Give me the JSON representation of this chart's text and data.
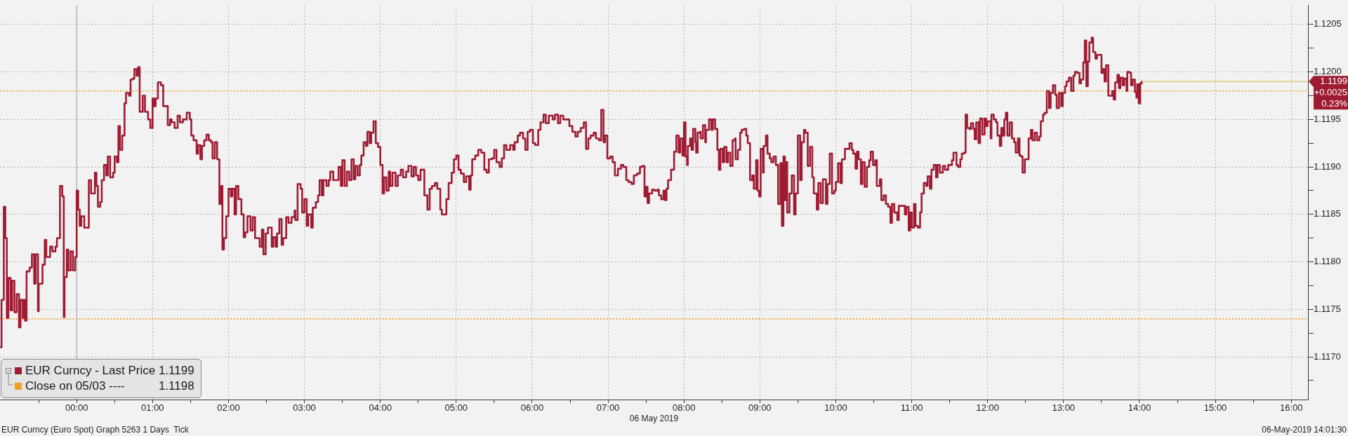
{
  "chart_data": {
    "type": "step",
    "xlabel": "06 May 2019",
    "x": [
      -1,
      -0.99,
      -0.96,
      -0.94,
      -0.92,
      -0.9,
      -0.87,
      -0.85,
      -0.82,
      -0.79,
      -0.76,
      -0.74,
      -0.71,
      -0.69,
      -0.68,
      -0.66,
      -0.62,
      -0.59,
      -0.56,
      -0.54,
      -0.51,
      -0.5,
      -0.45,
      -0.42,
      -0.4,
      -0.35,
      -0.32,
      -0.28,
      -0.26,
      -0.22,
      -0.19,
      -0.17,
      -0.16,
      -0.13,
      -0.11,
      -0.08,
      -0.05,
      -0.02,
      0,
      0.02,
      0.04,
      0.06,
      0.1,
      0.16,
      0.19,
      0.24,
      0.26,
      0.28,
      0.31,
      0.33,
      0.36,
      0.39,
      0.41,
      0.44,
      0.48,
      0.5,
      0.53,
      0.55,
      0.57,
      0.6,
      0.63,
      0.65,
      0.69,
      0.71,
      0.74,
      0.76,
      0.79,
      0.81,
      0.83,
      0.87,
      0.9,
      0.94,
      0.97,
      1,
      1.02,
      1.04,
      1.07,
      1.11,
      1.14,
      1.2,
      1.23,
      1.25,
      1.29,
      1.33,
      1.36,
      1.4,
      1.45,
      1.49,
      1.51,
      1.54,
      1.58,
      1.6,
      1.63,
      1.65,
      1.68,
      1.71,
      1.74,
      1.77,
      1.79,
      1.82,
      1.85,
      1.88,
      1.9,
      1.92,
      1.94,
      1.97,
      2,
      2.03,
      2.05,
      2.08,
      2.1,
      2.13,
      2.17,
      2.2,
      2.22,
      2.25,
      2.29,
      2.32,
      2.35,
      2.41,
      2.44,
      2.46,
      2.49,
      2.52,
      2.57,
      2.59,
      2.62,
      2.64,
      2.67,
      2.7,
      2.72,
      2.76,
      2.79,
      2.83,
      2.87,
      2.88,
      2.91,
      2.95,
      2.97,
      3,
      3.03,
      3.05,
      3.09,
      3.11,
      3.15,
      3.18,
      3.2,
      3.23,
      3.25,
      3.29,
      3.32,
      3.34,
      3.38,
      3.45,
      3.48,
      3.5,
      3.53,
      3.56,
      3.59,
      3.62,
      3.65,
      3.67,
      3.7,
      3.73,
      3.75,
      3.78,
      3.81,
      3.83,
      3.86,
      3.88,
      3.91,
      3.94,
      3.97,
      4,
      4.03,
      4.05,
      4.08,
      4.11,
      4.13,
      4.16,
      4.2,
      4.23,
      4.27,
      4.3,
      4.34,
      4.37,
      4.41,
      4.44,
      4.47,
      4.5,
      4.53,
      4.58,
      4.62,
      4.65,
      4.68,
      4.72,
      4.75,
      4.79,
      4.81,
      4.87,
      4.9,
      4.94,
      4.97,
      5,
      5.03,
      5.06,
      5.1,
      5.13,
      5.17,
      5.19,
      5.21,
      5.25,
      5.29,
      5.33,
      5.37,
      5.4,
      5.43,
      5.47,
      5.5,
      5.53,
      5.57,
      5.6,
      5.63,
      5.66,
      5.71,
      5.75,
      5.77,
      5.81,
      5.84,
      5.88,
      5.91,
      5.94,
      5.97,
      6.01,
      6.04,
      6.08,
      6.11,
      6.15,
      6.18,
      6.22,
      6.27,
      6.3,
      6.34,
      6.37,
      6.41,
      6.49,
      6.53,
      6.57,
      6.6,
      6.64,
      6.68,
      6.71,
      6.74,
      6.77,
      6.81,
      6.84,
      6.88,
      6.91,
      6.94,
      6.96,
      6.99,
      7.03,
      7.06,
      7.09,
      7.13,
      7.17,
      7.2,
      7.24,
      7.27,
      7.31,
      7.34,
      7.38,
      7.42,
      7.45,
      7.48,
      7.5,
      7.52,
      7.54,
      7.58,
      7.61,
      7.65,
      7.67,
      7.7,
      7.73,
      7.75,
      7.77,
      7.79,
      7.83,
      7.87,
      7.9,
      7.93,
      7.95,
      7.98,
      8,
      8.02,
      8.04,
      8.05,
      8.08,
      8.1,
      8.12,
      8.15,
      8.16,
      8.18,
      8.21,
      8.22,
      8.25,
      8.28,
      8.29,
      8.33,
      8.36,
      8.38,
      8.41,
      8.44,
      8.46,
      8.48,
      8.51,
      8.53,
      8.56,
      8.58,
      8.61,
      8.64,
      8.67,
      8.68,
      8.71,
      8.74,
      8.76,
      8.79,
      8.82,
      8.84,
      8.87,
      8.9,
      8.92,
      8.95,
      8.97,
      8.99,
      9.01,
      9.04,
      9.05,
      9.08,
      9.1,
      9.13,
      9.15,
      9.18,
      9.21,
      9.24,
      9.27,
      9.29,
      9.31,
      9.33,
      9.35,
      9.36,
      9.39,
      9.42,
      9.45,
      9.47,
      9.5,
      9.53,
      9.55,
      9.58,
      9.6,
      9.63,
      9.66,
      9.69,
      9.71,
      9.75,
      9.77,
      9.8,
      9.83,
      9.87,
      9.89,
      9.92,
      9.95,
      9.98,
      10,
      10.03,
      10.06,
      10.08,
      10.12,
      10.18,
      10.21,
      10.23,
      10.26,
      10.28,
      10.3,
      10.33,
      10.35,
      10.38,
      10.41,
      10.44,
      10.46,
      10.49,
      10.52,
      10.54,
      10.58,
      10.6,
      10.63,
      10.66,
      10.69,
      10.72,
      10.74,
      10.77,
      10.81,
      10.83,
      10.91,
      10.93,
      10.96,
      10.98,
      11,
      11.03,
      11.05,
      11.08,
      11.11,
      11.13,
      11.16,
      11.19,
      11.21,
      11.24,
      11.26,
      11.29,
      11.32,
      11.34,
      11.37,
      11.41,
      11.44,
      11.48,
      11.53,
      11.55,
      11.59,
      11.61,
      11.64,
      11.66,
      11.69,
      11.71,
      11.73,
      11.76,
      11.78,
      11.81,
      11.83,
      11.85,
      11.88,
      11.9,
      11.93,
      11.96,
      11.98,
      12,
      12.04,
      12.05,
      12.08,
      12.11,
      12.13,
      12.16,
      12.18,
      12.2,
      12.22,
      12.24,
      12.26,
      12.29,
      12.32,
      12.35,
      12.37,
      12.4,
      12.42,
      12.44,
      12.46,
      12.49,
      12.54,
      12.57,
      12.59,
      12.62,
      12.65,
      12.68,
      12.7,
      12.73,
      12.75,
      12.78,
      12.81,
      12.83,
      12.86,
      12.89,
      12.91,
      12.94,
      12.97,
      12.99,
      13.02,
      13.04,
      13.07,
      13.1,
      13.13,
      13.15,
      13.18,
      13.21,
      13.23,
      13.26,
      13.28,
      13.3,
      13.32,
      13.34,
      13.37,
      13.39,
      13.42,
      13.44,
      13.5,
      13.52,
      13.54,
      13.56,
      13.59,
      13.64,
      13.66,
      13.68,
      13.71,
      13.73,
      13.75,
      13.78,
      13.8,
      13.83,
      13.84,
      13.87,
      13.89,
      13.91,
      13.94,
      13.96,
      13.97,
      13.99,
      14.01,
      14.03
    ],
    "series": [
      {
        "name": "EUR Curncy - Last Price 1.1199",
        "color": "#9e1b32",
        "values": [
          1.1171,
          1.1176,
          1.11858,
          1.11825,
          1.11741,
          1.11783,
          1.11749,
          1.1178,
          1.11747,
          1.11766,
          1.11731,
          1.1176,
          1.11741,
          1.1176,
          1.11738,
          1.1179,
          1.11794,
          1.11808,
          1.11777,
          1.11808,
          1.11748,
          1.11777,
          1.11797,
          1.11823,
          1.11805,
          1.11816,
          1.11811,
          1.11816,
          1.11825,
          1.1188,
          1.11869,
          1.11742,
          1.11784,
          1.11813,
          1.11791,
          1.11811,
          1.11791,
          1.11805,
          1.11875,
          1.11855,
          1.11838,
          1.11848,
          1.11836,
          1.11886,
          1.11872,
          1.11894,
          1.1188,
          1.11858,
          1.11863,
          1.11886,
          1.11902,
          1.11891,
          1.11911,
          1.11889,
          1.11894,
          1.11911,
          1.11905,
          1.11943,
          1.11918,
          1.11933,
          1.11967,
          1.11978,
          1.11975,
          1.11992,
          1.11993,
          1.12003,
          1.11996,
          1.12005,
          1.11958,
          1.11975,
          1.11958,
          1.1195,
          1.11941,
          1.11972,
          1.11964,
          1.11972,
          1.11989,
          1.11986,
          1.11964,
          1.11944,
          1.1195,
          1.11947,
          1.11941,
          1.11954,
          1.11947,
          1.1195,
          1.11957,
          1.1195,
          1.11933,
          1.11928,
          1.11914,
          1.11923,
          1.11908,
          1.11922,
          1.11928,
          1.11934,
          1.11928,
          1.11926,
          1.11909,
          1.11926,
          1.11908,
          1.11861,
          1.1188,
          1.11813,
          1.11825,
          1.11848,
          1.11877,
          1.11869,
          1.11877,
          1.1185,
          1.1188,
          1.11866,
          1.1185,
          1.11826,
          1.11831,
          1.11848,
          1.11833,
          1.11847,
          1.11825,
          1.11816,
          1.11834,
          1.11808,
          1.1183,
          1.11836,
          1.11816,
          1.11826,
          1.11816,
          1.1183,
          1.11845,
          1.11818,
          1.11825,
          1.11847,
          1.11841,
          1.11847,
          1.11854,
          1.11844,
          1.11882,
          1.11877,
          1.11852,
          1.11866,
          1.11838,
          1.1185,
          1.11836,
          1.11857,
          1.11863,
          1.1187,
          1.11886,
          1.1187,
          1.11886,
          1.1188,
          1.11886,
          1.11895,
          1.11886,
          1.119,
          1.1188,
          1.11907,
          1.1188,
          1.11895,
          1.11886,
          1.11908,
          1.11887,
          1.11901,
          1.11891,
          1.11902,
          1.11912,
          1.11926,
          1.11922,
          1.11937,
          1.11925,
          1.11936,
          1.11948,
          1.11925,
          1.11921,
          1.11902,
          1.11872,
          1.11889,
          1.11875,
          1.11895,
          1.1188,
          1.11894,
          1.1188,
          1.11891,
          1.11897,
          1.11889,
          1.11895,
          1.11901,
          1.1189,
          1.119,
          1.11891,
          1.11886,
          1.11897,
          1.1187,
          1.11855,
          1.11877,
          1.1188,
          1.11883,
          1.11877,
          1.11855,
          1.1185,
          1.11866,
          1.11883,
          1.11894,
          1.11908,
          1.11912,
          1.11897,
          1.11893,
          1.11884,
          1.1189,
          1.11876,
          1.11891,
          1.11908,
          1.11912,
          1.11918,
          1.11915,
          1.11897,
          1.11894,
          1.11908,
          1.11909,
          1.11918,
          1.11905,
          1.119,
          1.11909,
          1.11923,
          1.11918,
          1.11923,
          1.11918,
          1.11926,
          1.11933,
          1.11936,
          1.1193,
          1.11918,
          1.11937,
          1.11939,
          1.11925,
          1.11923,
          1.11939,
          1.11947,
          1.11955,
          1.11946,
          1.11954,
          1.1195,
          1.11955,
          1.11946,
          1.11954,
          1.1195,
          1.11943,
          1.11937,
          1.11932,
          1.11937,
          1.11941,
          1.11947,
          1.11919,
          1.1193,
          1.11933,
          1.11936,
          1.1193,
          1.11928,
          1.1196,
          1.11926,
          1.11933,
          1.11909,
          1.11911,
          1.11905,
          1.11891,
          1.11898,
          1.11902,
          1.119,
          1.11886,
          1.11884,
          1.11882,
          1.11891,
          1.11893,
          1.119,
          1.11901,
          1.11869,
          1.11879,
          1.11862,
          1.11872,
          1.11876,
          1.11875,
          1.11876,
          1.1187,
          1.11866,
          1.11875,
          1.11865,
          1.11877,
          1.11886,
          1.11897,
          1.11916,
          1.11933,
          1.11915,
          1.1193,
          1.11912,
          1.11947,
          1.11911,
          1.11902,
          1.11922,
          1.1193,
          1.11918,
          1.1194,
          1.11926,
          1.11915,
          1.11936,
          1.11937,
          1.1193,
          1.11944,
          1.11926,
          1.11939,
          1.1195,
          1.11939,
          1.1195,
          1.1194,
          1.11918,
          1.11897,
          1.11919,
          1.11905,
          1.11921,
          1.11905,
          1.11915,
          1.11901,
          1.11928,
          1.1193,
          1.11908,
          1.11918,
          1.11936,
          1.11939,
          1.1194,
          1.11933,
          1.11925,
          1.11886,
          1.11891,
          1.11877,
          1.11907,
          1.11875,
          1.11869,
          1.11919,
          1.11894,
          1.11922,
          1.11933,
          1.11914,
          1.11909,
          1.11905,
          1.11911,
          1.11902,
          1.11861,
          1.11904,
          1.11838,
          1.11911,
          1.11865,
          1.11905,
          1.11852,
          1.11872,
          1.11891,
          1.1185,
          1.11872,
          1.11933,
          1.11886,
          1.11926,
          1.11939,
          1.11936,
          1.11901,
          1.11921,
          1.11889,
          1.11872,
          1.11855,
          1.11883,
          1.11862,
          1.11887,
          1.11861,
          1.11882,
          1.11914,
          1.11872,
          1.11875,
          1.11884,
          1.11904,
          1.11883,
          1.11908,
          1.11919,
          1.11925,
          1.11918,
          1.11914,
          1.11898,
          1.11916,
          1.11908,
          1.11882,
          1.11905,
          1.11879,
          1.119,
          1.11907,
          1.11916,
          1.11902,
          1.11907,
          1.1188,
          1.11887,
          1.11865,
          1.1187,
          1.11861,
          1.11858,
          1.11841,
          1.11861,
          1.11852,
          1.11844,
          1.11859,
          1.1185,
          1.11858,
          1.11833,
          1.11852,
          1.11836,
          1.11861,
          1.11838,
          1.11836,
          1.11852,
          1.11872,
          1.11883,
          1.1188,
          1.1189,
          1.11877,
          1.11897,
          1.11902,
          1.11889,
          1.11902,
          1.11894,
          1.11901,
          1.11897,
          1.11902,
          1.11907,
          1.11915,
          1.11902,
          1.119,
          1.11908,
          1.11914,
          1.11915,
          1.11955,
          1.11941,
          1.1194,
          1.11946,
          1.1194,
          1.11929,
          1.11947,
          1.11925,
          1.11951,
          1.11934,
          1.11951,
          1.11943,
          1.11948,
          1.1193,
          1.11955,
          1.1195,
          1.11947,
          1.11933,
          1.11922,
          1.11941,
          1.11933,
          1.1195,
          1.11957,
          1.11933,
          1.11947,
          1.1193,
          1.11926,
          1.11915,
          1.1193,
          1.11912,
          1.11911,
          1.11894,
          1.11908,
          1.1193,
          1.11939,
          1.11928,
          1.11936,
          1.11928,
          1.11932,
          1.11948,
          1.11955,
          1.11957,
          1.1198,
          1.11962,
          1.11978,
          1.11986,
          1.11976,
          1.11962,
          1.11978,
          1.11964,
          1.11978,
          1.11985,
          1.1199,
          1.11994,
          1.1198,
          1.11996,
          1.12,
          1.11999,
          1.11988,
          1.11992,
          1.1201,
          1.12033,
          1.11985,
          1.12011,
          1.12031,
          1.12036,
          1.12021,
          1.12014,
          1.12018,
          1.11999,
          1.12003,
          1.1199,
          1.12007,
          1.11975,
          1.1198,
          1.11971,
          1.11989,
          1.11997,
          1.11983,
          1.11994,
          1.11986,
          1.11993,
          1.1198,
          1.12,
          1.11999,
          1.11986,
          1.11992,
          1.11979,
          1.11973,
          1.11987,
          1.11967,
          1.11988,
          1.1199
        ]
      },
      {
        "name": "Close on 05/03 ---- 1.1198",
        "type": "line",
        "color": "#f0a020",
        "line_style": "dotted",
        "x": [
          -1.01,
          16.22
        ],
        "values": [
          1.1198,
          1.1198
        ]
      }
    ],
    "xlim": [
      -1.01,
      16.22
    ],
    "xticks": [
      {
        "value": -0.5,
        "label": null
      },
      {
        "value": 0,
        "label": "00:00"
      },
      {
        "value": 0.5,
        "label": null
      },
      {
        "value": 1,
        "label": "01:00"
      },
      {
        "value": 1.5,
        "label": null
      },
      {
        "value": 2,
        "label": "02:00"
      },
      {
        "value": 2.5,
        "label": null
      },
      {
        "value": 3,
        "label": "03:00"
      },
      {
        "value": 3.5,
        "label": null
      },
      {
        "value": 4,
        "label": "04:00"
      },
      {
        "value": 4.5,
        "label": null
      },
      {
        "value": 5,
        "label": "05:00"
      },
      {
        "value": 5.5,
        "label": null
      },
      {
        "value": 6,
        "label": "06:00"
      },
      {
        "value": 6.5,
        "label": null
      },
      {
        "value": 7,
        "label": "07:00"
      },
      {
        "value": 7.5,
        "label": null
      },
      {
        "value": 8,
        "label": "08:00"
      },
      {
        "value": 8.5,
        "label": null
      },
      {
        "value": 9,
        "label": "09:00"
      },
      {
        "value": 9.5,
        "label": null
      },
      {
        "value": 10,
        "label": "10:00"
      },
      {
        "value": 10.5,
        "label": null
      },
      {
        "value": 11,
        "label": "11:00"
      },
      {
        "value": 11.5,
        "label": null
      },
      {
        "value": 12,
        "label": "12:00"
      },
      {
        "value": 12.5,
        "label": null
      },
      {
        "value": 13,
        "label": "13:00"
      },
      {
        "value": 13.5,
        "label": null
      },
      {
        "value": 14,
        "label": "14:00"
      },
      {
        "value": 14.5,
        "label": null
      },
      {
        "value": 15,
        "label": "15:00"
      },
      {
        "value": 15.5,
        "label": null
      },
      {
        "value": 16,
        "label": "16:00"
      }
    ],
    "ylim": [
      1.11655,
      1.1207
    ],
    "yticks": [
      {
        "value": 1.11675,
        "label": null
      },
      {
        "value": 1.117,
        "label": "1.1170"
      },
      {
        "value": 1.11725,
        "label": null
      },
      1.1175,
      {
        "value": 1.11775,
        "label": null
      },
      {
        "value": 1.118,
        "label": "1.1180"
      },
      {
        "value": 1.11825,
        "label": null
      },
      1.1185,
      {
        "value": 1.11875,
        "label": null
      },
      {
        "value": 1.119,
        "label": "1.1190"
      },
      {
        "value": 1.11925,
        "label": null
      },
      1.1195,
      {
        "value": 1.11975,
        "label": null
      },
      {
        "value": 1.12,
        "label": "1.1200"
      },
      {
        "value": 1.12025,
        "label": null
      },
      1.1205
    ],
    "grid": true,
    "legend": "bottom left",
    "ref_lines": [
      {
        "axis": "y",
        "value": 1.1174,
        "color": "#f0a020",
        "line_style": "dotted"
      },
      {
        "axis": "x",
        "value": 0,
        "color": "#a0a0a0",
        "line_style": "solid"
      }
    ],
    "annotations": [
      {
        "text": "1.1199\n+0.0025\n0.23%",
        "x": 14.03,
        "y": 1.1199
      },
      "EUR Curncy (Euro Spot) Graph 5263 1 Days  Tick",
      "06-May-2019 14:01:30"
    ]
  }
}
